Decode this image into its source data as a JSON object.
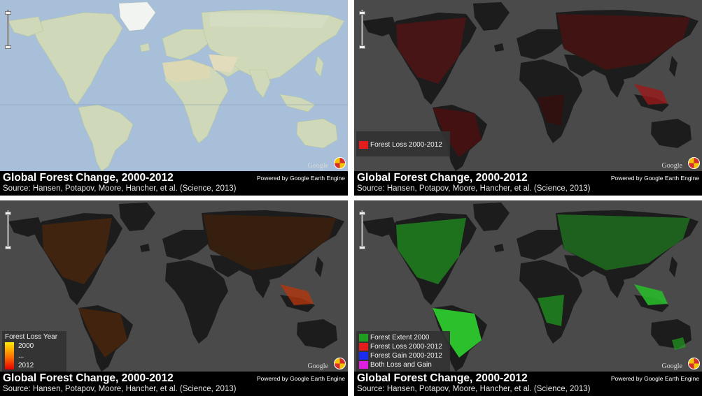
{
  "panels": [
    {
      "title": "Global Forest Change, 2000-2012",
      "source": "Source: Hansen, Potapov, Moore, Hancher, et al. (Science, 2013)",
      "powered": "Powered by Google Earth Engine",
      "google": "Google"
    },
    {
      "title": "Global Forest Change, 2000-2012",
      "source": "Source: Hansen, Potapov, Moore, Hancher, et al. (Science, 2013)",
      "powered": "Powered by Google Earth Engine",
      "google": "Google",
      "legend": [
        {
          "label": "Forest Loss 2000-2012",
          "color": "#e51c1c"
        }
      ]
    },
    {
      "title": "Global Forest Change, 2000-2012",
      "source": "Source: Hansen, Potapov, Moore, Hancher, et al. (Science, 2013)",
      "powered": "Powered by Google Earth Engine",
      "google": "Google",
      "legend_year": {
        "title": "Forest Loss Year",
        "start": "2000",
        "middle": "...",
        "end": "2012"
      }
    },
    {
      "title": "Global Forest Change, 2000-2012",
      "source": "Source: Hansen, Potapov, Moore, Hancher, et al. (Science, 2013)",
      "powered": "Powered by Google Earth Engine",
      "google": "Google",
      "legend": [
        {
          "label": "Forest Extent 2000",
          "color": "#1f9e1f"
        },
        {
          "label": "Forest Loss 2000-2012",
          "color": "#e51c1c"
        },
        {
          "label": "Forest Gain 2000-2012",
          "color": "#1a2cf0"
        },
        {
          "label": "Both Loss and Gain",
          "color": "#e01ee0"
        }
      ]
    }
  ],
  "colors": {
    "base_ocean": "#a7bfd9",
    "base_land": "#cfd9b9",
    "dark_ocean": "#4a4a4a",
    "dark_land": "#1c1c1c",
    "footer": "#000000"
  }
}
